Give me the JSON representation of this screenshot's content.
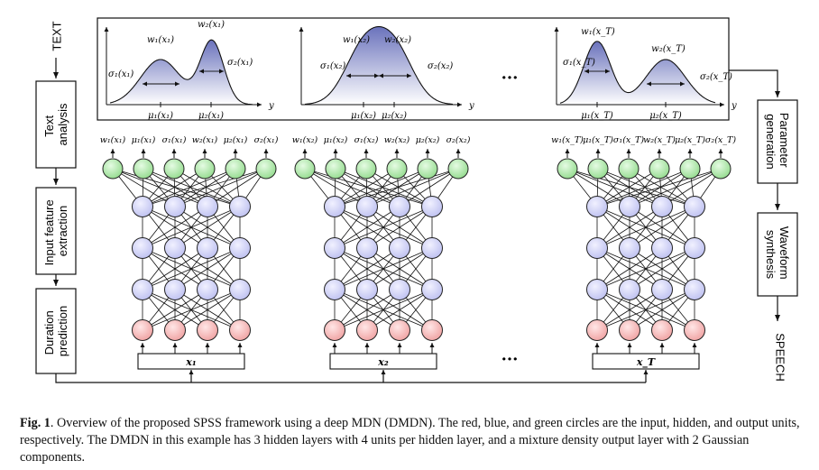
{
  "flow": {
    "input_label": "TEXT",
    "output_label": "SPEECH",
    "left_blocks": [
      {
        "lines": [
          "Text",
          "analysis"
        ]
      },
      {
        "lines": [
          "Input feature",
          "extraction"
        ]
      },
      {
        "lines": [
          "Duration",
          "prediction"
        ]
      }
    ],
    "right_blocks": [
      {
        "lines": [
          "Parameter",
          "generation"
        ]
      },
      {
        "lines": [
          "Waveform",
          "synthesis"
        ]
      }
    ]
  },
  "ellipsis": "···",
  "axis_symbol": "y",
  "networks": [
    {
      "input_label": "x₁",
      "output_labels": [
        "w₁(x₁)",
        "μ₁(x₁)",
        "σ₁(x₁)",
        "w₂(x₁)",
        "μ₂(x₁)",
        "σ₂(x₁)"
      ],
      "plot": {
        "w1": "w₁(x₁)",
        "w2": "w₂(x₁)",
        "s1": "σ₁(x₁)",
        "s2": "σ₂(x₁)",
        "mu1": "μ₁(x₁)",
        "mu2": "μ₂(x₁)"
      }
    },
    {
      "input_label": "x₂",
      "output_labels": [
        "w₁(x₂)",
        "μ₁(x₂)",
        "σ₁(x₂)",
        "w₂(x₂)",
        "μ₂(x₂)",
        "σ₂(x₂)"
      ],
      "plot": {
        "w1": "w₁(x₂)",
        "w2": "w₂(x₂)",
        "s1": "σ₁(x₂)",
        "s2": "σ₂(x₂)",
        "mu1": "μ₁(x₂)",
        "mu2": "μ₂(x₂)"
      }
    },
    {
      "input_label": "x_T",
      "output_labels": [
        "w₁(x_T)",
        "μ₁(x_T)",
        "σ₁(x_T)",
        "w₂(x_T)",
        "μ₂(x_T)",
        "σ₂(x_T)"
      ],
      "plot": {
        "w1": "w₁(x_T)",
        "w2": "w₂(x_T)",
        "s1": "σ₁(x_T)",
        "s2": "σ₂(x_T)",
        "mu1": "μ₁(x_T)",
        "mu2": "μ₂(x_T)"
      }
    }
  ],
  "colors": {
    "input_unit": "#f2aaaa",
    "hidden_unit": "#c4c6f2",
    "output_unit": "#9fe09a",
    "density_fill": "#8088c8",
    "line": "#111111"
  },
  "caption": {
    "label": "Fig. 1",
    "text": ". Overview of the proposed SPSS framework using a deep MDN (DMDN). The red, blue, and green circles are the input, hidden, and output units, respectively. The DMDN in this example has 3 hidden layers with 4 units per hidden layer, and a mixture density output layer with 2 Gaussian components."
  }
}
